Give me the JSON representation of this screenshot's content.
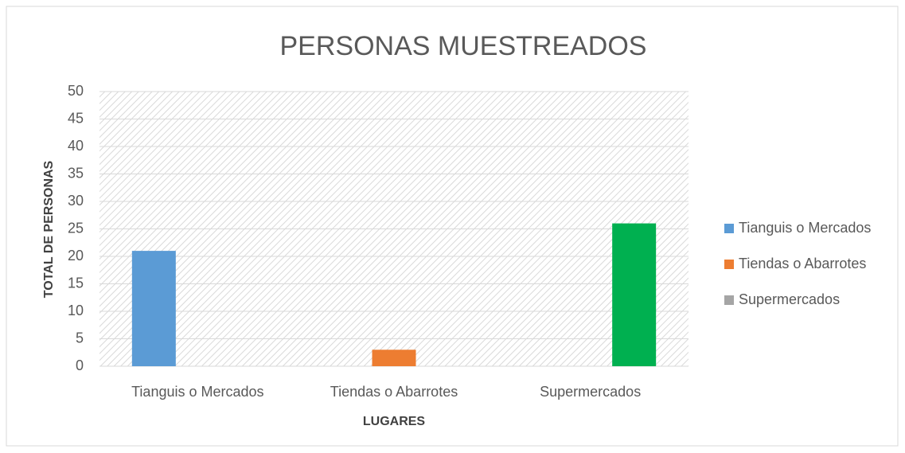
{
  "chart_data": {
    "type": "bar",
    "title": "PERSONAS MUESTREADOS",
    "x_label": "LUGARES",
    "y_label": "TOTAL DE PERSONAS",
    "categories": [
      "Tianguis o Mercados",
      "Tiendas o Abarrotes",
      "Supermercados"
    ],
    "series": [
      {
        "name": "Tianguis o Mercados",
        "color": "#5b9bd5",
        "values": [
          21,
          null,
          null
        ]
      },
      {
        "name": "Tiendas o Abarrotes",
        "color": "#ed7d31",
        "values": [
          null,
          3,
          null
        ]
      },
      {
        "name": "Supermercados",
        "color": "#a5a5a5",
        "bar_color": "#00b050",
        "values": [
          null,
          null,
          26
        ]
      }
    ],
    "ylim": [
      0,
      50
    ],
    "yticks": [
      0,
      5,
      10,
      15,
      20,
      25,
      30,
      35,
      40,
      45,
      50
    ],
    "grid": true,
    "legend": "right"
  }
}
